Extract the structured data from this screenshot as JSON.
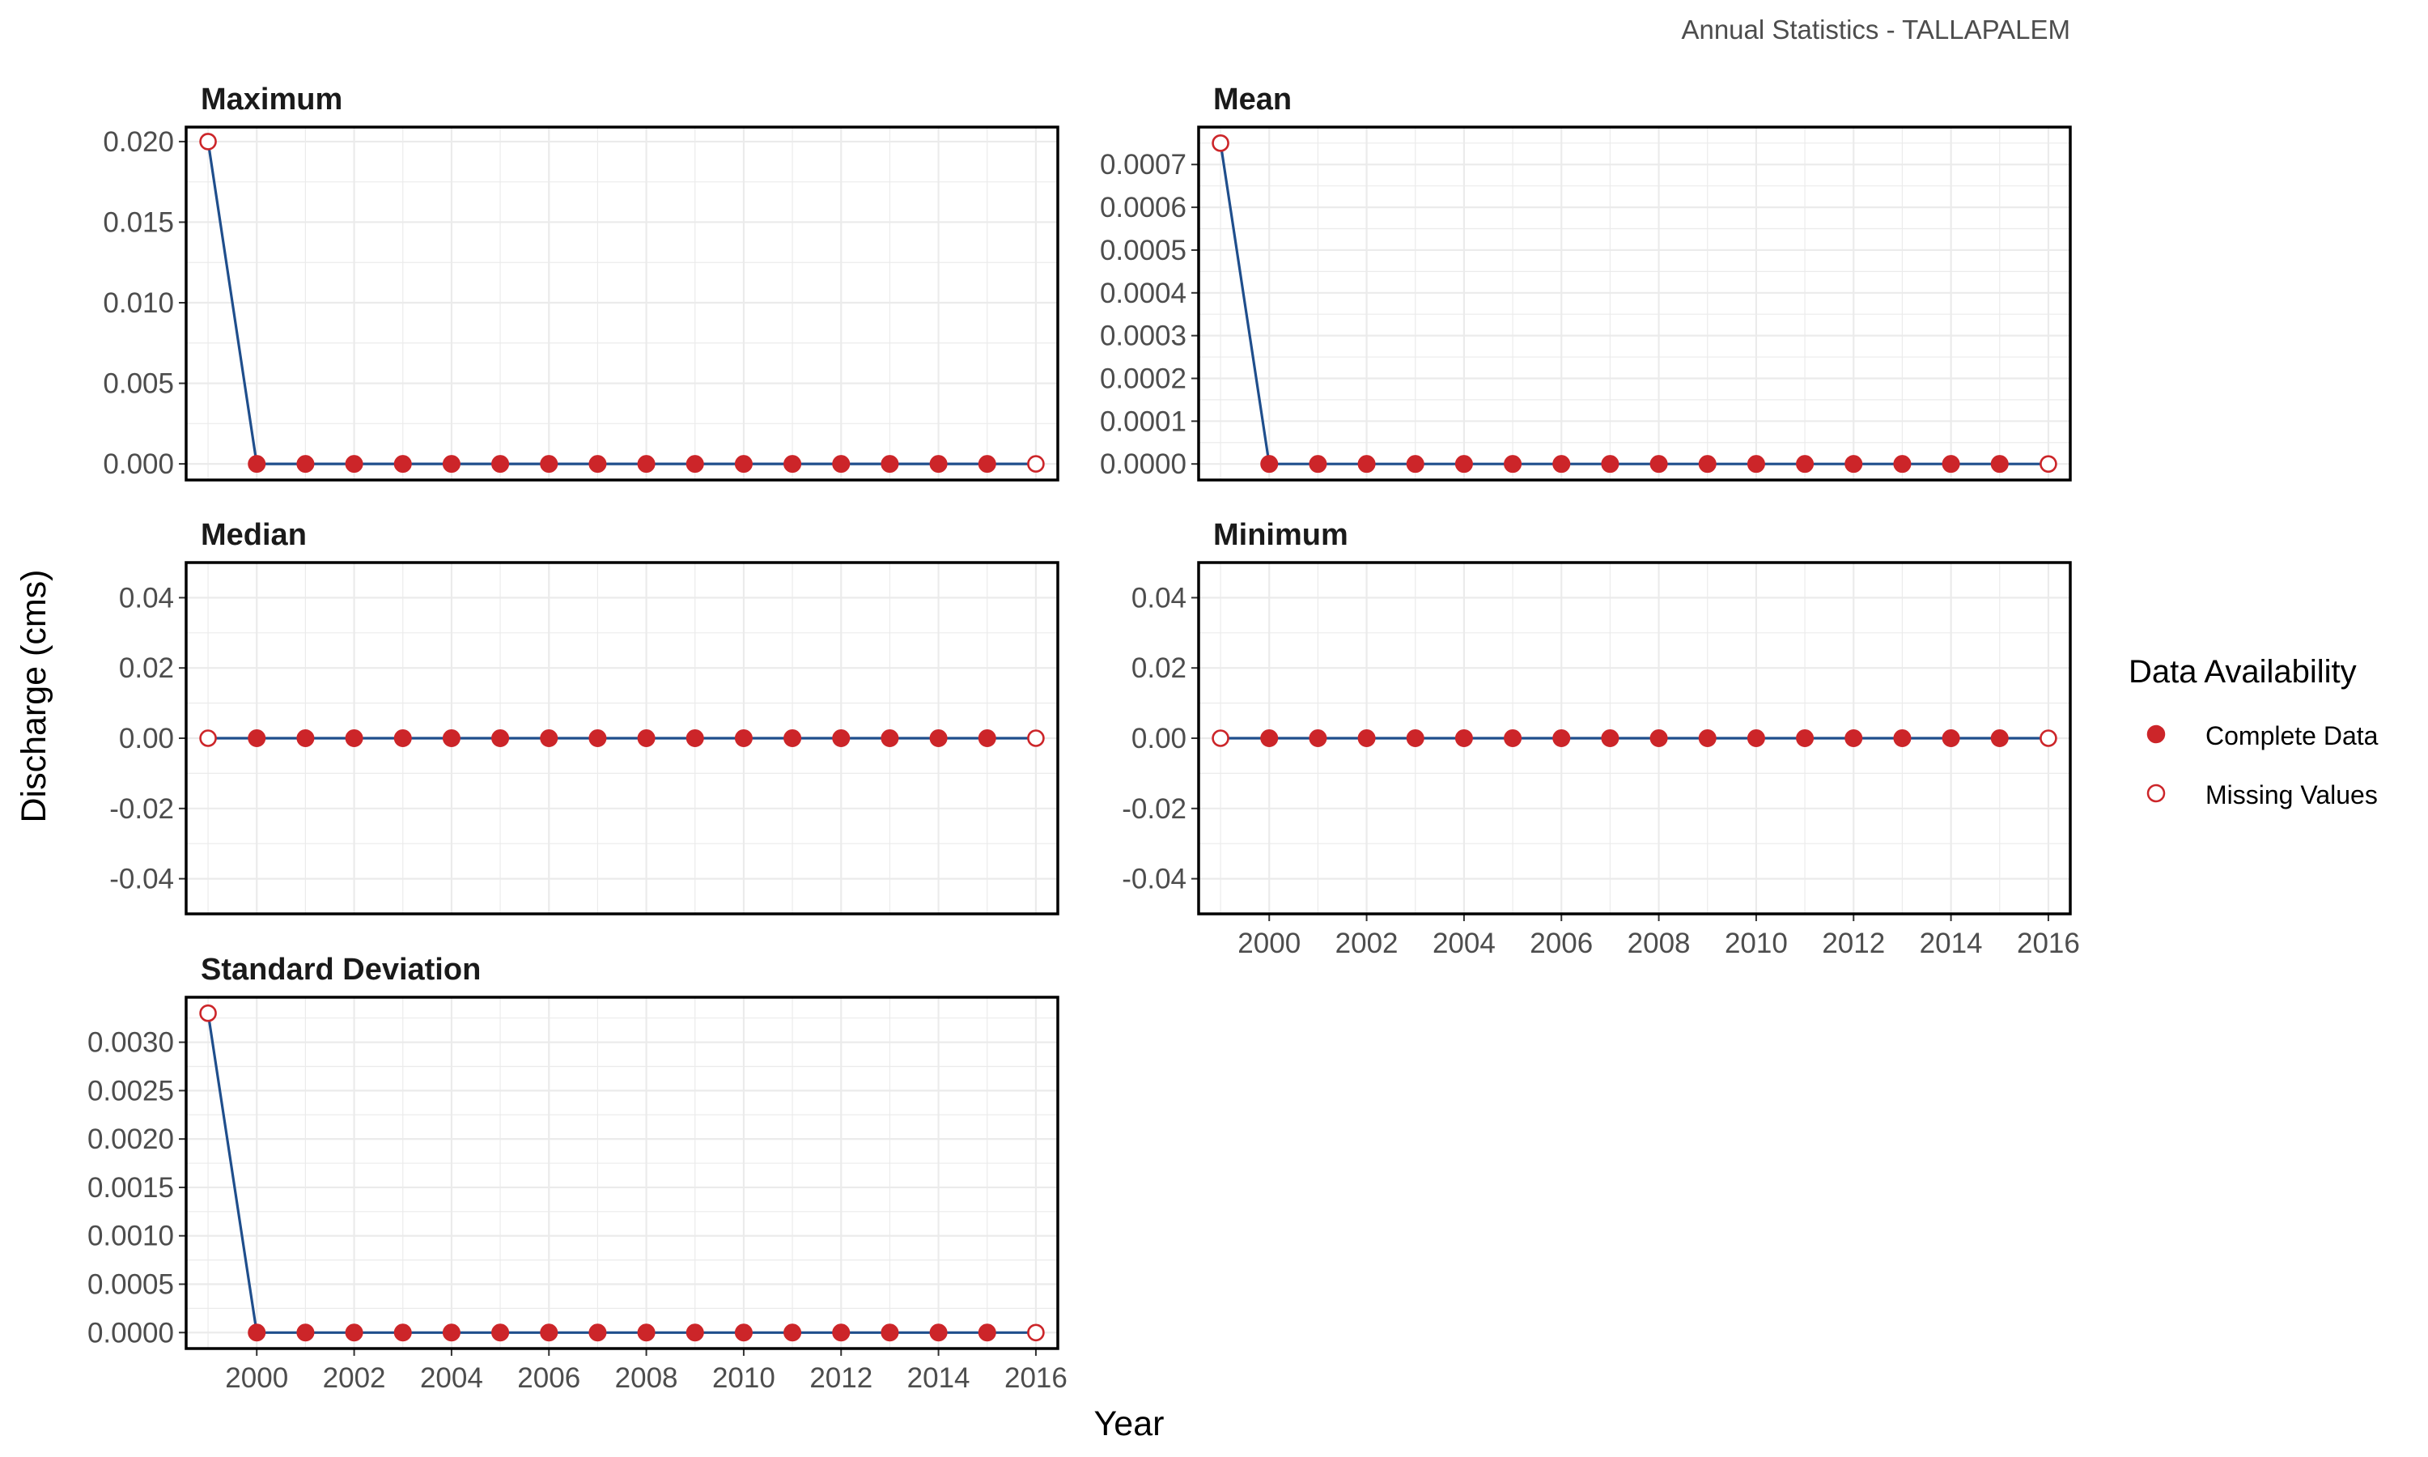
{
  "caption": "Annual Statistics - TALLAPALEM",
  "xlabel": "Year",
  "ylabel": "Discharge (cms)",
  "legend": {
    "title": "Data Availability",
    "items": [
      {
        "label": "Complete Data",
        "marker": "filled"
      },
      {
        "label": "Missing Values",
        "marker": "open"
      }
    ]
  },
  "colors": {
    "line": "#1f4e8c",
    "point": "#cc2529",
    "panel_border": "#000000",
    "grid": "#ebebeb"
  },
  "chart_data": [
    {
      "type": "line",
      "title": "Maximum",
      "x": [
        1999,
        2000,
        2001,
        2002,
        2003,
        2004,
        2005,
        2006,
        2007,
        2008,
        2009,
        2010,
        2011,
        2012,
        2013,
        2014,
        2015,
        2016
      ],
      "y": [
        0.02,
        0,
        0,
        0,
        0,
        0,
        0,
        0,
        0,
        0,
        0,
        0,
        0,
        0,
        0,
        0,
        0,
        0
      ],
      "status": [
        "Missing Values",
        "Complete Data",
        "Complete Data",
        "Complete Data",
        "Complete Data",
        "Complete Data",
        "Complete Data",
        "Complete Data",
        "Complete Data",
        "Complete Data",
        "Complete Data",
        "Complete Data",
        "Complete Data",
        "Complete Data",
        "Complete Data",
        "Complete Data",
        "Complete Data",
        "Missing Values"
      ],
      "yticks": [
        "0.000",
        "0.005",
        "0.010",
        "0.015",
        "0.020"
      ],
      "ytick_values": [
        0,
        0.005,
        0.01,
        0.015,
        0.02
      ],
      "ylim": [
        -0.001,
        0.0209
      ],
      "show_xticks": false
    },
    {
      "type": "line",
      "title": "Mean",
      "x": [
        1999,
        2000,
        2001,
        2002,
        2003,
        2004,
        2005,
        2006,
        2007,
        2008,
        2009,
        2010,
        2011,
        2012,
        2013,
        2014,
        2015,
        2016
      ],
      "y": [
        0.00075,
        0,
        0,
        0,
        0,
        0,
        0,
        0,
        0,
        0,
        0,
        0,
        0,
        0,
        0,
        0,
        0,
        0
      ],
      "status": [
        "Missing Values",
        "Complete Data",
        "Complete Data",
        "Complete Data",
        "Complete Data",
        "Complete Data",
        "Complete Data",
        "Complete Data",
        "Complete Data",
        "Complete Data",
        "Complete Data",
        "Complete Data",
        "Complete Data",
        "Complete Data",
        "Complete Data",
        "Complete Data",
        "Complete Data",
        "Missing Values"
      ],
      "yticks": [
        "0.0000",
        "0.0001",
        "0.0002",
        "0.0003",
        "0.0004",
        "0.0005",
        "0.0006",
        "0.0007"
      ],
      "ytick_values": [
        0,
        0.0001,
        0.0002,
        0.0003,
        0.0004,
        0.0005,
        0.0006,
        0.0007
      ],
      "ylim": [
        -3.75e-05,
        0.0007875
      ],
      "show_xticks": false
    },
    {
      "type": "line",
      "title": "Median",
      "x": [
        1999,
        2000,
        2001,
        2002,
        2003,
        2004,
        2005,
        2006,
        2007,
        2008,
        2009,
        2010,
        2011,
        2012,
        2013,
        2014,
        2015,
        2016
      ],
      "y": [
        0,
        0,
        0,
        0,
        0,
        0,
        0,
        0,
        0,
        0,
        0,
        0,
        0,
        0,
        0,
        0,
        0,
        0
      ],
      "status": [
        "Missing Values",
        "Complete Data",
        "Complete Data",
        "Complete Data",
        "Complete Data",
        "Complete Data",
        "Complete Data",
        "Complete Data",
        "Complete Data",
        "Complete Data",
        "Complete Data",
        "Complete Data",
        "Complete Data",
        "Complete Data",
        "Complete Data",
        "Complete Data",
        "Complete Data",
        "Missing Values"
      ],
      "yticks": [
        "-0.04",
        "-0.02",
        "0.00",
        "0.02",
        "0.04"
      ],
      "ytick_values": [
        -0.04,
        -0.02,
        0,
        0.02,
        0.04
      ],
      "ylim": [
        -0.05,
        0.05
      ],
      "show_xticks": false
    },
    {
      "type": "line",
      "title": "Minimum",
      "x": [
        1999,
        2000,
        2001,
        2002,
        2003,
        2004,
        2005,
        2006,
        2007,
        2008,
        2009,
        2010,
        2011,
        2012,
        2013,
        2014,
        2015,
        2016
      ],
      "y": [
        0,
        0,
        0,
        0,
        0,
        0,
        0,
        0,
        0,
        0,
        0,
        0,
        0,
        0,
        0,
        0,
        0,
        0
      ],
      "status": [
        "Missing Values",
        "Complete Data",
        "Complete Data",
        "Complete Data",
        "Complete Data",
        "Complete Data",
        "Complete Data",
        "Complete Data",
        "Complete Data",
        "Complete Data",
        "Complete Data",
        "Complete Data",
        "Complete Data",
        "Complete Data",
        "Complete Data",
        "Complete Data",
        "Complete Data",
        "Missing Values"
      ],
      "yticks": [
        "-0.04",
        "-0.02",
        "0.00",
        "0.02",
        "0.04"
      ],
      "ytick_values": [
        -0.04,
        -0.02,
        0,
        0.02,
        0.04
      ],
      "ylim": [
        -0.05,
        0.05
      ],
      "show_xticks": true
    },
    {
      "type": "line",
      "title": "Standard Deviation",
      "x": [
        1999,
        2000,
        2001,
        2002,
        2003,
        2004,
        2005,
        2006,
        2007,
        2008,
        2009,
        2010,
        2011,
        2012,
        2013,
        2014,
        2015,
        2016
      ],
      "y": [
        0.0033,
        0,
        0,
        0,
        0,
        0,
        0,
        0,
        0,
        0,
        0,
        0,
        0,
        0,
        0,
        0,
        0,
        0
      ],
      "status": [
        "Missing Values",
        "Complete Data",
        "Complete Data",
        "Complete Data",
        "Complete Data",
        "Complete Data",
        "Complete Data",
        "Complete Data",
        "Complete Data",
        "Complete Data",
        "Complete Data",
        "Complete Data",
        "Complete Data",
        "Complete Data",
        "Complete Data",
        "Complete Data",
        "Complete Data",
        "Missing Values"
      ],
      "yticks": [
        "0.0000",
        "0.0005",
        "0.0010",
        "0.0015",
        "0.0020",
        "0.0025",
        "0.0030"
      ],
      "ytick_values": [
        0,
        0.0005,
        0.001,
        0.0015,
        0.002,
        0.0025,
        0.003
      ],
      "ylim": [
        -0.000165,
        0.003465
      ],
      "show_xticks": true
    }
  ],
  "xticks": [
    "2000",
    "2002",
    "2004",
    "2006",
    "2008",
    "2010",
    "2012",
    "2014",
    "2016"
  ],
  "xtick_values": [
    2000,
    2002,
    2004,
    2006,
    2008,
    2010,
    2012,
    2014,
    2016
  ],
  "xlim": [
    1998.55,
    2016.45
  ]
}
